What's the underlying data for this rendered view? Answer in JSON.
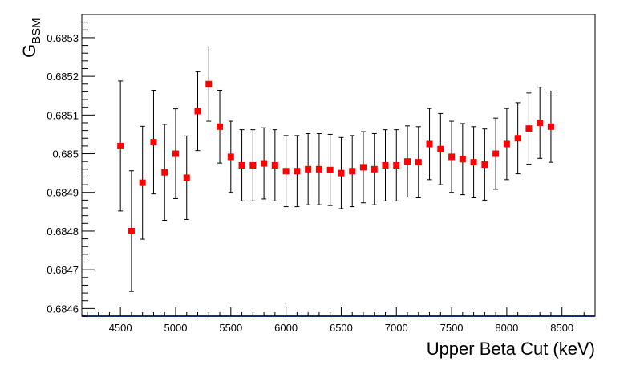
{
  "chart_data": {
    "type": "scatter",
    "title": "",
    "xlabel": "Upper Beta Cut (keV)",
    "ylabel_main": "G",
    "ylabel_sub": "BSM",
    "xlim": [
      4150,
      8800
    ],
    "ylim": [
      0.68458,
      0.68536
    ],
    "x_ticks": [
      "4500",
      "5000",
      "5500",
      "6000",
      "6500",
      "7000",
      "7500",
      "8000",
      "8500"
    ],
    "y_ticks": [
      "0.6846",
      "0.6847",
      "0.6848",
      "0.6849",
      "0.685",
      "0.6851",
      "0.6852",
      "0.6853"
    ],
    "grid": false,
    "marker_color": "#ff0000",
    "series": [
      {
        "points": [
          {
            "x": 4500,
            "y": 0.68502,
            "err": 0.000168
          },
          {
            "x": 4600,
            "y": 0.6848,
            "err": 0.000156
          },
          {
            "x": 4700,
            "y": 0.684925,
            "err": 0.000146
          },
          {
            "x": 4800,
            "y": 0.68503,
            "err": 0.000134
          },
          {
            "x": 4900,
            "y": 0.684952,
            "err": 0.000124
          },
          {
            "x": 5000,
            "y": 0.685,
            "err": 0.000116
          },
          {
            "x": 5100,
            "y": 0.684938,
            "err": 0.000108
          },
          {
            "x": 5200,
            "y": 0.68511,
            "err": 0.000102
          },
          {
            "x": 5300,
            "y": 0.68518,
            "err": 9.6e-05
          },
          {
            "x": 5400,
            "y": 0.68507,
            "err": 9.4e-05
          },
          {
            "x": 5500,
            "y": 0.684992,
            "err": 9.2e-05
          },
          {
            "x": 5600,
            "y": 0.68497,
            "err": 9.2e-05
          },
          {
            "x": 5700,
            "y": 0.68497,
            "err": 9.2e-05
          },
          {
            "x": 5800,
            "y": 0.684975,
            "err": 9.2e-05
          },
          {
            "x": 5900,
            "y": 0.68497,
            "err": 9.2e-05
          },
          {
            "x": 6000,
            "y": 0.684955,
            "err": 9.2e-05
          },
          {
            "x": 6100,
            "y": 0.684955,
            "err": 9.2e-05
          },
          {
            "x": 6200,
            "y": 0.68496,
            "err": 9.2e-05
          },
          {
            "x": 6300,
            "y": 0.68496,
            "err": 9.2e-05
          },
          {
            "x": 6400,
            "y": 0.684958,
            "err": 9.2e-05
          },
          {
            "x": 6500,
            "y": 0.68495,
            "err": 9.2e-05
          },
          {
            "x": 6600,
            "y": 0.684955,
            "err": 9.2e-05
          },
          {
            "x": 6700,
            "y": 0.684965,
            "err": 9.2e-05
          },
          {
            "x": 6800,
            "y": 0.68496,
            "err": 9.2e-05
          },
          {
            "x": 6900,
            "y": 0.68497,
            "err": 9.2e-05
          },
          {
            "x": 7000,
            "y": 0.68497,
            "err": 9.2e-05
          },
          {
            "x": 7100,
            "y": 0.68498,
            "err": 9.2e-05
          },
          {
            "x": 7200,
            "y": 0.684978,
            "err": 9.2e-05
          },
          {
            "x": 7300,
            "y": 0.685025,
            "err": 9.2e-05
          },
          {
            "x": 7400,
            "y": 0.685012,
            "err": 9.2e-05
          },
          {
            "x": 7500,
            "y": 0.684992,
            "err": 9.2e-05
          },
          {
            "x": 7600,
            "y": 0.684986,
            "err": 9.2e-05
          },
          {
            "x": 7700,
            "y": 0.684978,
            "err": 9.2e-05
          },
          {
            "x": 7800,
            "y": 0.684972,
            "err": 9.2e-05
          },
          {
            "x": 7900,
            "y": 0.685,
            "err": 9.2e-05
          },
          {
            "x": 8000,
            "y": 0.685025,
            "err": 9.2e-05
          },
          {
            "x": 8100,
            "y": 0.68504,
            "err": 9.2e-05
          },
          {
            "x": 8200,
            "y": 0.685065,
            "err": 9.2e-05
          },
          {
            "x": 8300,
            "y": 0.68508,
            "err": 9.2e-05
          },
          {
            "x": 8400,
            "y": 0.68507,
            "err": 9.2e-05
          }
        ]
      }
    ]
  }
}
